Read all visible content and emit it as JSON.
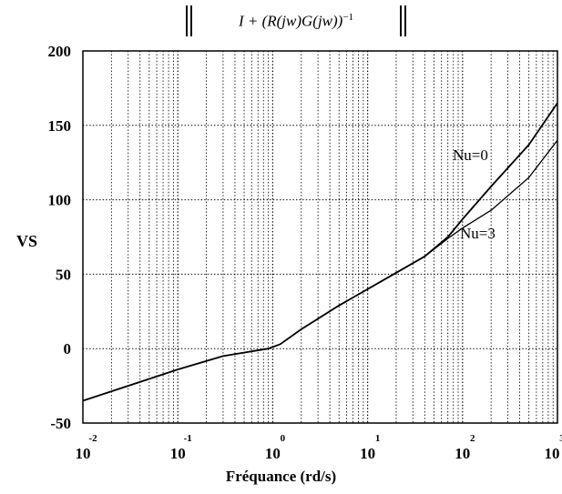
{
  "chart_data": {
    "type": "line",
    "title": {
      "main": "I + (R(jw)G(jw))",
      "exponent": "−1"
    },
    "xlabel": "Fréquance (rd/s)",
    "ylabel": "VS",
    "xscale": "log",
    "xlim": [
      0.01,
      1000
    ],
    "ylim": [
      -50,
      200
    ],
    "grid": "dotted",
    "x_ticks": [
      {
        "base": "10",
        "exp": "-2",
        "value": 0.01
      },
      {
        "base": "10",
        "exp": "-1",
        "value": 0.1
      },
      {
        "base": "10",
        "exp": "0",
        "value": 1
      },
      {
        "base": "10",
        "exp": "1",
        "value": 10
      },
      {
        "base": "10",
        "exp": "2",
        "value": 100
      },
      {
        "base": "10",
        "exp": "3",
        "value": 1000
      }
    ],
    "y_ticks": [
      "200",
      "150",
      "100",
      "50",
      "0",
      "-50"
    ],
    "y_tick_values": [
      200,
      150,
      100,
      50,
      0,
      -50
    ],
    "series": [
      {
        "name": "Nu=0",
        "x": [
          0.01,
          0.03,
          0.1,
          0.3,
          0.9,
          1.2,
          2,
          5,
          10,
          20,
          40,
          70,
          100,
          200,
          500,
          1000
        ],
        "y": [
          -35,
          -25,
          -14,
          -5,
          0,
          3,
          13,
          29,
          40,
          51,
          62,
          75,
          87,
          109,
          137,
          165
        ]
      },
      {
        "name": "Nu=3",
        "x": [
          0.01,
          0.03,
          0.1,
          0.3,
          0.9,
          1.2,
          2,
          5,
          10,
          20,
          40,
          70,
          100,
          200,
          500,
          1000
        ],
        "y": [
          -35,
          -25,
          -14,
          -5,
          0,
          3,
          13,
          29,
          40,
          51,
          62,
          74,
          81,
          93,
          115,
          140
        ]
      }
    ],
    "annotations": [
      "Nu=0",
      "Nu=3"
    ]
  }
}
